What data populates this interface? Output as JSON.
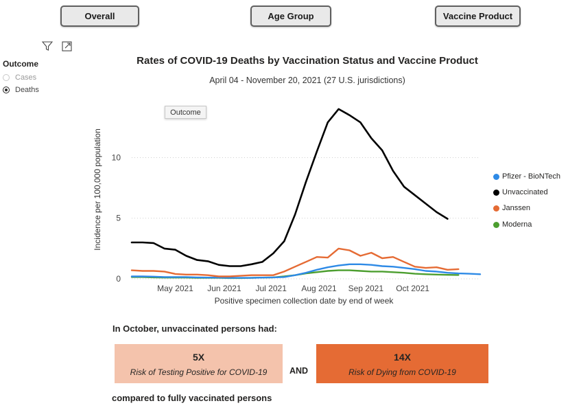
{
  "tabs": {
    "overall": "Overall",
    "age_group": "Age Group",
    "vaccine_product": "Vaccine Product"
  },
  "outcome_filter": {
    "title": "Outcome",
    "options": [
      {
        "label": "Cases",
        "selected": false
      },
      {
        "label": "Deaths",
        "selected": true
      }
    ]
  },
  "tooltip": "Outcome",
  "bottom": {
    "heading": "In October, unvaccinated persons had:",
    "positive_value": "5X",
    "positive_label": "Risk of Testing Positive for COVID-19",
    "and_label": "AND",
    "dying_value": "14X",
    "dying_label": "Risk of Dying from COVID-19",
    "footer": "compared to fully vaccinated persons",
    "colors": {
      "positive_box": "#f4c3ac",
      "dying_box": "#e56b34"
    }
  },
  "chart_data": {
    "type": "line",
    "title": "Rates of COVID-19 Deaths by Vaccination Status and Vaccine Product",
    "subtitle": "April 04 - November 20, 2021 (27 U.S. jurisdictions)",
    "xlabel": "Positive specimen collection date by end of week",
    "ylabel": "Incidence per 100,000 population",
    "ylim": [
      0,
      14.5
    ],
    "yticks": [
      0,
      5,
      10
    ],
    "xtick_labels": [
      "May 2021",
      "Jun 2021",
      "Jul 2021",
      "Aug 2021",
      "Sep 2021",
      "Oct 2021"
    ],
    "xtick_positions": [
      4,
      8.5,
      12.8,
      17.2,
      21.5,
      25.8
    ],
    "x_count": 33,
    "legend_position": "right",
    "grid": "horizontal dotted",
    "series": [
      {
        "name": "Pfizer - BioNTech",
        "color": "#2e8ae6",
        "values": [
          0.2,
          0.2,
          0.18,
          0.15,
          0.15,
          0.15,
          0.12,
          0.1,
          0.1,
          0.08,
          0.08,
          0.08,
          0.1,
          0.12,
          0.15,
          0.3,
          0.5,
          0.75,
          0.95,
          1.1,
          1.2,
          1.2,
          1.15,
          1.05,
          1.0,
          0.9,
          0.8,
          0.65,
          0.6,
          0.5,
          0.45,
          0.42,
          0.38
        ]
      },
      {
        "name": "Unvaccinated",
        "color": "#000000",
        "values": [
          3.0,
          3.0,
          2.95,
          2.5,
          2.4,
          1.9,
          1.55,
          1.45,
          1.15,
          1.05,
          1.05,
          1.2,
          1.4,
          2.1,
          3.1,
          5.3,
          8.0,
          10.5,
          12.9,
          14.0,
          13.5,
          12.9,
          11.6,
          10.6,
          8.9,
          7.6,
          6.9,
          6.2,
          5.5,
          4.95
        ]
      },
      {
        "name": "Janssen",
        "color": "#e56b34",
        "values": [
          0.7,
          0.65,
          0.65,
          0.6,
          0.4,
          0.35,
          0.35,
          0.3,
          0.2,
          0.2,
          0.25,
          0.3,
          0.3,
          0.3,
          0.6,
          1.0,
          1.4,
          1.8,
          1.75,
          2.5,
          2.35,
          1.9,
          2.15,
          1.7,
          1.8,
          1.4,
          1.0,
          0.9,
          0.95,
          0.75,
          0.8
        ]
      },
      {
        "name": "Moderna",
        "color": "#4c9e2f",
        "values": [
          0.15,
          0.15,
          0.12,
          0.1,
          0.1,
          0.1,
          0.08,
          0.08,
          0.08,
          0.06,
          0.06,
          0.08,
          0.1,
          0.12,
          0.2,
          0.3,
          0.45,
          0.55,
          0.65,
          0.7,
          0.7,
          0.65,
          0.6,
          0.6,
          0.55,
          0.5,
          0.42,
          0.38,
          0.35,
          0.33,
          0.32
        ]
      }
    ]
  }
}
